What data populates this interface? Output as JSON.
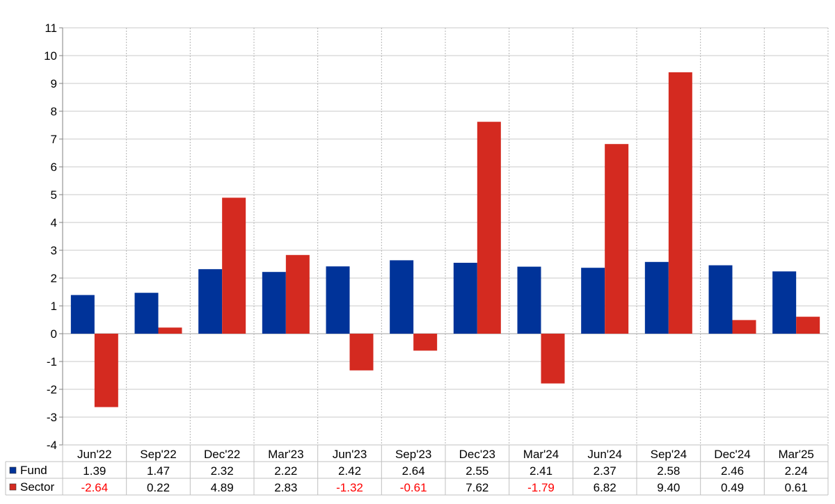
{
  "chart_data": {
    "type": "bar",
    "categories": [
      "Jun'22",
      "Sep'22",
      "Dec'22",
      "Mar'23",
      "Jun'23",
      "Sep'23",
      "Dec'23",
      "Mar'24",
      "Jun'24",
      "Sep'24",
      "Dec'24",
      "Mar'25"
    ],
    "series": [
      {
        "name": "Fund",
        "color": "#003399",
        "values": [
          1.39,
          1.47,
          2.32,
          2.22,
          2.42,
          2.64,
          2.55,
          2.41,
          2.37,
          2.58,
          2.46,
          2.24
        ],
        "labels": [
          "1.39",
          "1.47",
          "2.32",
          "2.22",
          "2.42",
          "2.64",
          "2.55",
          "2.41",
          "2.37",
          "2.58",
          "2.46",
          "2.24"
        ]
      },
      {
        "name": "Sector",
        "color": "#d42a20",
        "values": [
          -2.64,
          0.22,
          4.89,
          2.83,
          -1.32,
          -0.61,
          7.62,
          -1.79,
          6.82,
          9.4,
          0.49,
          0.61
        ],
        "labels": [
          "-2.64",
          "0.22",
          "4.89",
          "2.83",
          "-1.32",
          "-0.61",
          "7.62",
          "-1.79",
          "6.82",
          "9.40",
          "0.49",
          "0.61"
        ]
      }
    ],
    "ylim": [
      -4,
      11
    ],
    "yticks": [
      "-4",
      "-3",
      "-2",
      "-1",
      "0",
      "1",
      "2",
      "3",
      "4",
      "5",
      "6",
      "7",
      "8",
      "9",
      "10",
      "11"
    ],
    "grid": true,
    "legend": "data-table-left",
    "negative_color": "#ff0000"
  }
}
